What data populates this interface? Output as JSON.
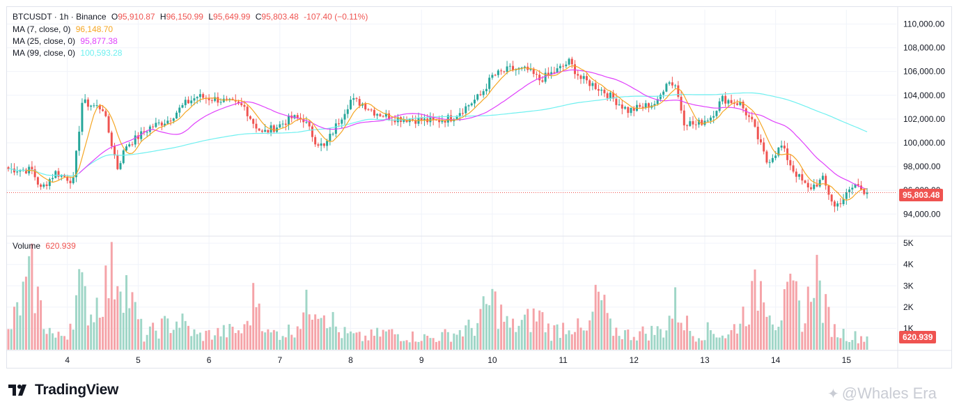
{
  "header": {
    "symbol": "BTCUSDT · 1h · Binance",
    "open_label": "O",
    "open": "95,910.87",
    "high_label": "H",
    "high": "96,150.99",
    "low_label": "L",
    "low": "95,649.99",
    "close_label": "C",
    "close": "95,803.48",
    "change": "-107.40 (−0.11%)"
  },
  "indicators": [
    {
      "label": "MA (7, close, 0)",
      "value": "96,148.70",
      "color": "#f5a623"
    },
    {
      "label": "MA (25, close, 0)",
      "value": "95,877.38",
      "color": "#e040fb"
    },
    {
      "label": "MA (99, close, 0)",
      "value": "100,593.28",
      "color": "#6ef0f0"
    }
  ],
  "volume": {
    "label": "Volume",
    "value": "620.939"
  },
  "price_tag": "95,803.48",
  "volume_tag": "620.939",
  "colors": {
    "up": "#26a69a",
    "down": "#ef5350",
    "up_vol": "#9fd6c7",
    "down_vol": "#f5a3a8",
    "ma7": "#f5a623",
    "ma25": "#e040fb",
    "ma99": "#6ef0f0",
    "grid": "#f0f3fa",
    "axis_text": "#131722"
  },
  "logo": {
    "text": "TradingView"
  },
  "watermark": {
    "text": "@Whales Era"
  },
  "chart_data": {
    "type": "candlestick",
    "price_axis_ticks": [
      "94,000.00",
      "96,000.00",
      "98,000.00",
      "100,000.00",
      "102,000.00",
      "104,000.00",
      "106,000.00",
      "108,000.00",
      "110,000.00"
    ],
    "price_axis_values": [
      94000,
      96000,
      98000,
      100000,
      102000,
      104000,
      106000,
      108000,
      110000
    ],
    "ylim": [
      92200,
      111200
    ],
    "volume_axis_ticks": [
      "1K",
      "2K",
      "3K",
      "4K",
      "5K"
    ],
    "volume_axis_values": [
      1000,
      2000,
      3000,
      4000,
      5000
    ],
    "volume_ylim": [
      0,
      5300
    ],
    "x_tick_labels": [
      "4",
      "5",
      "6",
      "7",
      "8",
      "9",
      "10",
      "11",
      "12",
      "13",
      "14",
      "15"
    ],
    "x_tick_candle_index": [
      20,
      44,
      68,
      92,
      116,
      140,
      164,
      188,
      212,
      236,
      260,
      284
    ],
    "candle_count": 292,
    "close_price_anchors": [
      [
        0,
        97800
      ],
      [
        8,
        97700
      ],
      [
        11,
        96100
      ],
      [
        16,
        97500
      ],
      [
        22,
        96800
      ],
      [
        25,
        103400
      ],
      [
        32,
        102900
      ],
      [
        37,
        97900
      ],
      [
        40,
        99800
      ],
      [
        44,
        100500
      ],
      [
        48,
        101300
      ],
      [
        54,
        101900
      ],
      [
        60,
        103300
      ],
      [
        64,
        103900
      ],
      [
        72,
        103600
      ],
      [
        80,
        103000
      ],
      [
        83,
        101700
      ],
      [
        86,
        100800
      ],
      [
        92,
        101500
      ],
      [
        96,
        102100
      ],
      [
        100,
        102000
      ],
      [
        104,
        100200
      ],
      [
        107,
        99600
      ],
      [
        111,
        101400
      ],
      [
        116,
        103600
      ],
      [
        120,
        103300
      ],
      [
        124,
        102600
      ],
      [
        130,
        102100
      ],
      [
        136,
        102000
      ],
      [
        144,
        101800
      ],
      [
        150,
        102100
      ],
      [
        155,
        103000
      ],
      [
        160,
        104000
      ],
      [
        164,
        105600
      ],
      [
        170,
        106200
      ],
      [
        176,
        106100
      ],
      [
        180,
        105300
      ],
      [
        186,
        106100
      ],
      [
        190,
        106800
      ],
      [
        194,
        105400
      ],
      [
        198,
        104900
      ],
      [
        202,
        104300
      ],
      [
        206,
        103500
      ],
      [
        210,
        102700
      ],
      [
        216,
        103100
      ],
      [
        220,
        103400
      ],
      [
        223,
        105200
      ],
      [
        226,
        104900
      ],
      [
        229,
        101800
      ],
      [
        233,
        101500
      ],
      [
        238,
        102200
      ],
      [
        242,
        103700
      ],
      [
        248,
        103300
      ],
      [
        252,
        101700
      ],
      [
        257,
        98400
      ],
      [
        262,
        99700
      ],
      [
        266,
        97700
      ],
      [
        271,
        96100
      ],
      [
        276,
        96900
      ],
      [
        280,
        94600
      ],
      [
        284,
        95600
      ],
      [
        287,
        96500
      ],
      [
        291,
        95803
      ]
    ],
    "ma7_last": 96148.7,
    "ma25_last": 95877.38,
    "ma99_last": 100593.28,
    "last_price": 95803.48,
    "volume_anchors": [
      [
        0,
        900
      ],
      [
        8,
        3800
      ],
      [
        12,
        1500
      ],
      [
        16,
        600
      ],
      [
        20,
        900
      ],
      [
        24,
        3200
      ],
      [
        28,
        1900
      ],
      [
        35,
        3900
      ],
      [
        38,
        4300
      ],
      [
        42,
        2300
      ],
      [
        46,
        700
      ],
      [
        52,
        1200
      ],
      [
        58,
        1500
      ],
      [
        64,
        700
      ],
      [
        72,
        900
      ],
      [
        80,
        1000
      ],
      [
        84,
        3000
      ],
      [
        88,
        800
      ],
      [
        96,
        1000
      ],
      [
        104,
        2800
      ],
      [
        108,
        2000
      ],
      [
        112,
        900
      ],
      [
        120,
        600
      ],
      [
        128,
        900
      ],
      [
        136,
        700
      ],
      [
        144,
        600
      ],
      [
        152,
        900
      ],
      [
        158,
        1200
      ],
      [
        164,
        2600
      ],
      [
        170,
        1100
      ],
      [
        176,
        1500
      ],
      [
        180,
        1800
      ],
      [
        184,
        900
      ],
      [
        190,
        1400
      ],
      [
        196,
        800
      ],
      [
        200,
        2900
      ],
      [
        204,
        1100
      ],
      [
        210,
        800
      ],
      [
        216,
        900
      ],
      [
        222,
        1000
      ],
      [
        226,
        2300
      ],
      [
        232,
        800
      ],
      [
        238,
        1000
      ],
      [
        244,
        700
      ],
      [
        248,
        1600
      ],
      [
        252,
        2600
      ],
      [
        256,
        3600
      ],
      [
        260,
        1500
      ],
      [
        266,
        2900
      ],
      [
        270,
        1400
      ],
      [
        273,
        4700
      ],
      [
        276,
        2300
      ],
      [
        280,
        1000
      ],
      [
        286,
        700
      ],
      [
        291,
        621
      ]
    ]
  }
}
